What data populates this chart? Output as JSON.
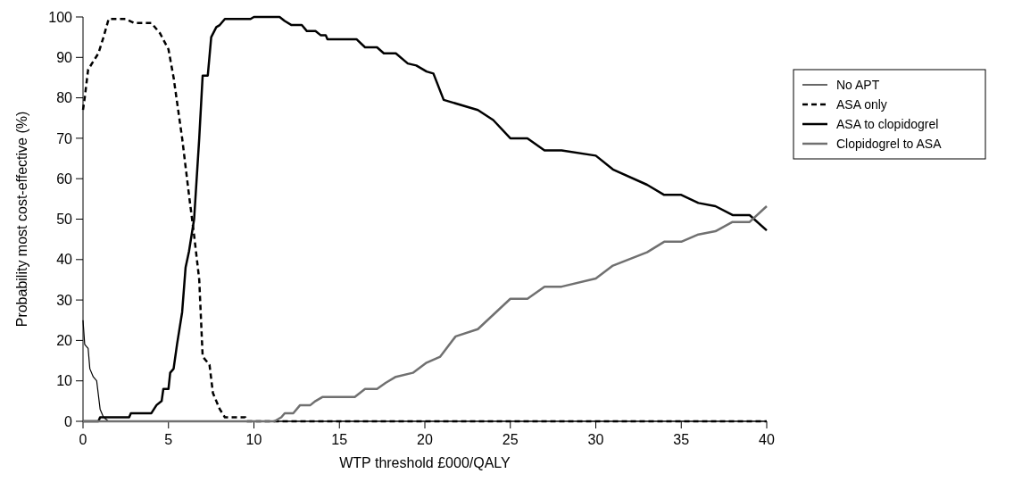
{
  "chart_data": {
    "type": "line",
    "xlabel": "WTP threshold £000/QALY",
    "ylabel": "Probability most cost-effective (%)",
    "xlim": [
      0,
      40
    ],
    "ylim": [
      0,
      100
    ],
    "xticks": [
      0,
      5,
      10,
      15,
      20,
      25,
      30,
      35,
      40
    ],
    "yticks": [
      0,
      10,
      20,
      30,
      40,
      50,
      60,
      70,
      80,
      90,
      100
    ],
    "grid": false,
    "legend": "right",
    "marker": "none",
    "series": [
      {
        "name": "No APT",
        "color": "#000000",
        "line_style": "solid",
        "x": [
          0,
          0.1,
          0.3,
          0.4,
          0.6,
          0.8,
          1.0,
          1.2,
          1.5,
          40
        ],
        "values": [
          25,
          19,
          18,
          13,
          11,
          10,
          3,
          1,
          0,
          0
        ]
      },
      {
        "name": "ASA only",
        "color": "#000000",
        "line_style": "dashed",
        "x": [
          0,
          0.1,
          0.3,
          0.6,
          0.9,
          1.2,
          1.5,
          2.5,
          3,
          4,
          4.5,
          5,
          5.3,
          5.8,
          6.2,
          6.5,
          6.8,
          7.0,
          7.4,
          7.6,
          8,
          8.3,
          9.5,
          9.6,
          40
        ],
        "values": [
          77,
          80,
          87,
          89,
          91,
          95,
          99.5,
          99.5,
          98.5,
          98.5,
          96,
          92,
          85,
          70,
          56,
          46,
          35,
          16,
          14,
          7,
          3,
          1,
          1,
          0,
          0
        ]
      },
      {
        "name": "ASA to clopidogrel",
        "color": "#000000",
        "line_style": "solid",
        "x": [
          0,
          0.9,
          1.0,
          2.7,
          2.8,
          4.0,
          4.3,
          4.6,
          4.7,
          5.0,
          5.1,
          5.3,
          5.5,
          5.8,
          6.0,
          6.2,
          6.5,
          6.8,
          7.0,
          7.3,
          7.5,
          7.8,
          8.0,
          8.3,
          9.8,
          10,
          11.5,
          11.8,
          12.2,
          12.8,
          13.1,
          13.6,
          13.9,
          14.2,
          14.3,
          16,
          16.5,
          17.2,
          17.6,
          18.3,
          19,
          19.5,
          20.1,
          20.5,
          21.1,
          23.1,
          24,
          25,
          26,
          27,
          28,
          30,
          31,
          33,
          34,
          35,
          36,
          37,
          38,
          39,
          40
        ],
        "values": [
          0,
          0,
          1,
          1,
          2,
          2,
          4,
          5,
          8,
          8,
          12,
          13,
          19,
          27,
          38,
          42,
          50,
          70,
          85.5,
          85.5,
          95,
          97.5,
          98,
          99.5,
          99.5,
          100,
          100,
          99,
          98,
          98,
          96.5,
          96.5,
          95.5,
          95.5,
          94.5,
          94.5,
          92.5,
          92.5,
          91,
          91,
          88.5,
          88,
          86.5,
          86,
          79.5,
          77,
          74.5,
          70,
          70,
          67,
          67,
          65.7,
          62.3,
          58.5,
          56,
          56,
          54,
          53.2,
          51,
          51,
          47.2
        ]
      },
      {
        "name": "Clopidogrel to ASA",
        "color": "#707070",
        "line_style": "solid",
        "x": [
          0,
          11.2,
          11.6,
          11.8,
          12.3,
          12.7,
          13.3,
          13.6,
          14,
          15.9,
          16.5,
          17.2,
          17.7,
          18.3,
          19.3,
          20.1,
          20.9,
          21.8,
          23.1,
          25,
          26,
          27,
          28,
          30,
          31,
          33,
          34,
          35,
          36,
          37,
          38,
          39,
          40
        ],
        "values": [
          0,
          0,
          1,
          2,
          2,
          4,
          4,
          5,
          6,
          6,
          8,
          8,
          9.5,
          11,
          12,
          14.5,
          16,
          21,
          22.8,
          30.3,
          30.3,
          33.3,
          33.3,
          35.3,
          38.5,
          41.8,
          44.4,
          44.4,
          46.2,
          47,
          49.3,
          49.3,
          53.2
        ]
      }
    ]
  }
}
